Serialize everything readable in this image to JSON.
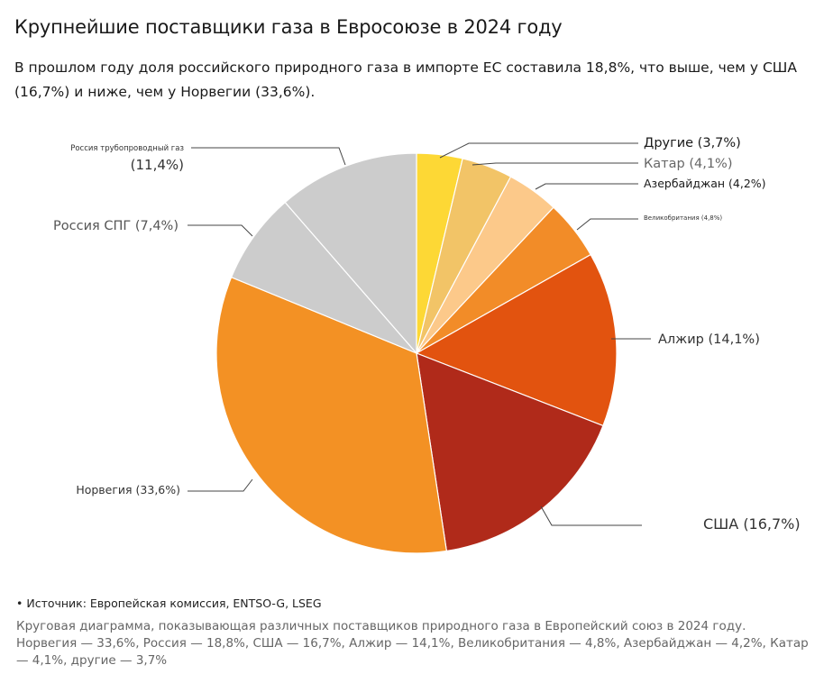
{
  "header": {
    "title": "Крупнейшие поставщики газа в Евросоюзе в 2024 году",
    "subtitle": "В прошлом году доля российского природного газа в импорте ЕС составила 18,8%, что выше, чем у США (16,7%) и ниже, чем у Норвегии (33,6%)."
  },
  "chart_data": {
    "type": "pie",
    "slices": [
      {
        "label": "Другие (3,7%)",
        "value": 3.7,
        "color": "#fdd835"
      },
      {
        "label": "Катар (4,1%)",
        "value": 4.1,
        "color": "#f2c467"
      },
      {
        "label": "Азербайджан (4,2%)",
        "value": 4.2,
        "color": "#fcc98a"
      },
      {
        "label": "Великобритания (4,8%)",
        "value": 4.8,
        "color": "#f28c28"
      },
      {
        "label": "Алжир (14,1%)",
        "value": 14.1,
        "color": "#e2530f"
      },
      {
        "label": "США (16,7%)",
        "value": 16.7,
        "color": "#b02a1a"
      },
      {
        "label": "Норвегия (33,6%)",
        "value": 33.6,
        "color": "#f39124"
      },
      {
        "label": "Россия СПГ (7,4%)",
        "value": 7.4,
        "color": "#cccccc"
      },
      {
        "label": "Россия трубопроводный газ",
        "sublabel": "(11,4%)",
        "value": 11.4,
        "color": "#cccccc"
      }
    ]
  },
  "footer": {
    "source": "• Источник: Европейская комиссия, ENTSO-G, LSEG",
    "caption": "Круговая диаграмма, показывающая различных поставщиков природного газа в Европейский союз в 2024 году. Норвегия — 33,6%, Россия — 18,8%, США — 16,7%, Алжир — 14,1%, Великобритания — 4,8%, Азербайджан — 4,2%, Катар — 4,1%, другие — 3,7%"
  }
}
